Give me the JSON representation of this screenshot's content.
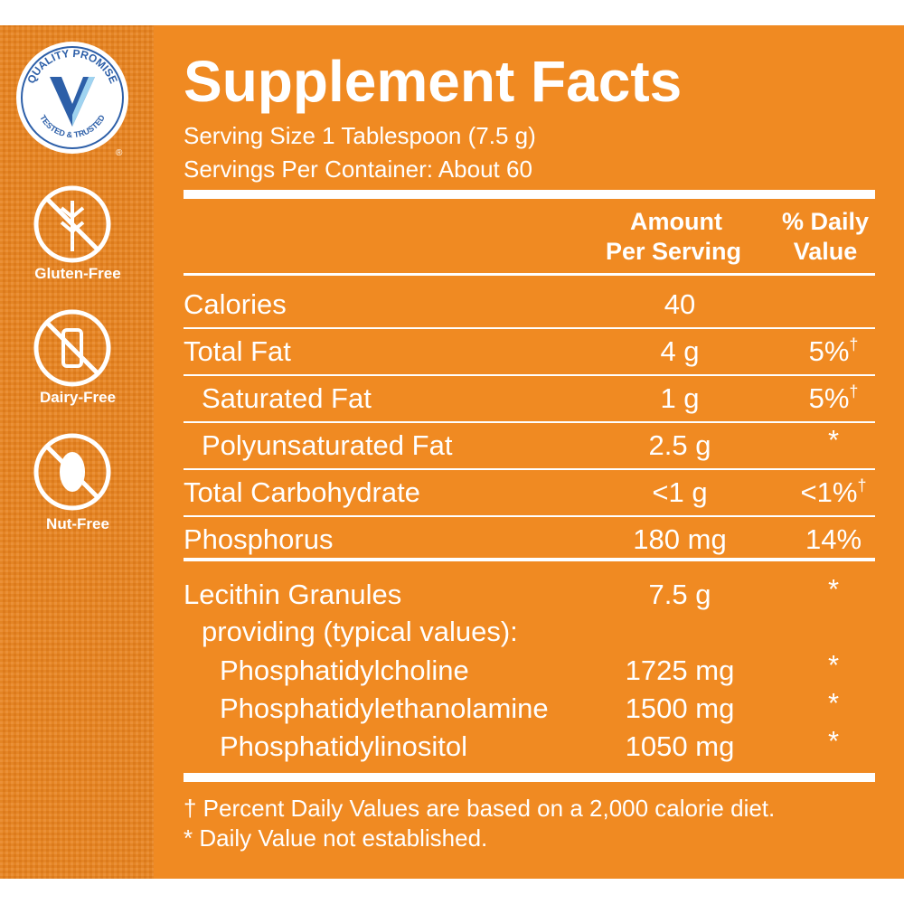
{
  "badge": {
    "top": "QUALITY PROMISE",
    "bottom": "TESTED & TRUSTED",
    "registered": "®"
  },
  "claims": [
    "Gluten-Free",
    "Dairy-Free",
    "Nut-Free"
  ],
  "facts": {
    "title": "Supplement Facts",
    "serving_size": "Serving Size 1 Tablespoon (7.5 g)",
    "servings_per_container": "Servings Per Container: About 60",
    "header": {
      "amount": [
        "Amount",
        "Per Serving"
      ],
      "daily_value": [
        "% Daily",
        "Value"
      ]
    },
    "rows": [
      {
        "name": "Calories",
        "amount": "40"
      },
      {
        "name": "Total Fat",
        "amount": "4 g",
        "dv": "5%",
        "mark": "†"
      },
      {
        "name": "Saturated Fat",
        "amount": "1 g",
        "dv": "5%",
        "mark": "†"
      },
      {
        "name": "Polyunsaturated Fat",
        "amount": "2.5 g",
        "dv": "*"
      },
      {
        "name": "Total Carbohydrate",
        "amount": "<1 g",
        "dv": "<1%",
        "mark": "†"
      },
      {
        "name": "Phosphorus",
        "amount": "180 mg",
        "dv": "14%"
      }
    ],
    "lecithin": {
      "name": "Lecithin Granules",
      "amount": "7.5 g",
      "dv": "*",
      "note": "providing (typical values):",
      "components": [
        {
          "name": "Phosphatidylcholine",
          "amount": "1725 mg",
          "dv": "*"
        },
        {
          "name": "Phosphatidylethanolamine",
          "amount": "1500 mg",
          "dv": "*"
        },
        {
          "name": "Phosphatidylinositol",
          "amount": "1050 mg",
          "dv": "*"
        }
      ]
    },
    "footnotes": [
      "† Percent Daily Values are based on a 2,000 calorie diet.",
      "* Daily Value not established."
    ]
  }
}
